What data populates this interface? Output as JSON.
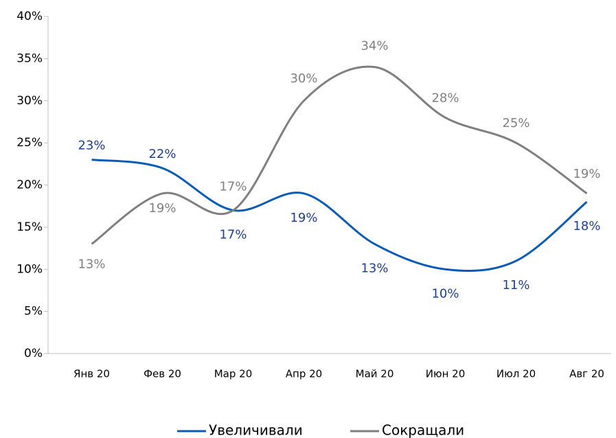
{
  "chart_data": {
    "type": "line",
    "categories": [
      "Янв 20",
      "Фев 20",
      "Мар 20",
      "Апр 20",
      "Май 20",
      "Июн 20",
      "Июл 20",
      "Авг 20"
    ],
    "series": [
      {
        "name": "Увеличивали",
        "color": "#0a5bb5",
        "values": [
          23,
          22,
          17,
          19,
          13,
          10,
          11,
          18
        ],
        "value_labels": [
          "23%",
          "22%",
          "17%",
          "19%",
          "13%",
          "10%",
          "11%",
          "18%"
        ]
      },
      {
        "name": "Сокращали",
        "color": "#7f7f7f",
        "values": [
          13,
          19,
          17,
          30,
          34,
          28,
          25,
          19
        ],
        "value_labels": [
          "13%",
          "19%",
          "17%",
          "30%",
          "34%",
          "28%",
          "25%",
          "19%"
        ]
      }
    ],
    "ylim": [
      0,
      40
    ],
    "yticks": [
      {
        "value": 0,
        "label": "0%"
      },
      {
        "value": 5,
        "label": "5%"
      },
      {
        "value": 10,
        "label": "10%"
      },
      {
        "value": 15,
        "label": "15%"
      },
      {
        "value": 20,
        "label": "20%"
      },
      {
        "value": 25,
        "label": "25%"
      },
      {
        "value": 30,
        "label": "30%"
      },
      {
        "value": 35,
        "label": "35%"
      },
      {
        "value": 40,
        "label": "40%"
      }
    ],
    "legend": "bottom"
  }
}
